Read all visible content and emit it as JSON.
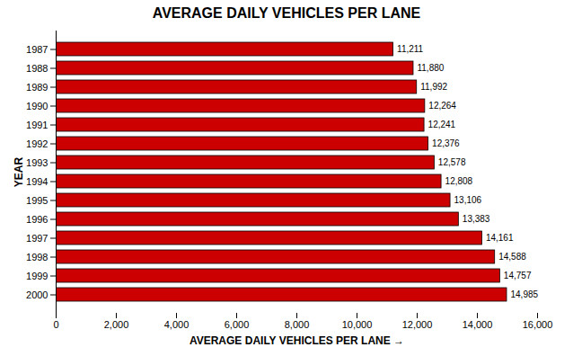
{
  "chart_data": {
    "type": "bar",
    "orientation": "horizontal",
    "title": "AVERAGE DAILY VEHICLES PER LANE",
    "xlabel": "AVERAGE DAILY VEHICLES PER LANE",
    "ylabel": "YEAR",
    "categories": [
      "1987",
      "1988",
      "1989",
      "1990",
      "1991",
      "1992",
      "1993",
      "1994",
      "1995",
      "1996",
      "1997",
      "1998",
      "1999",
      "2000"
    ],
    "values": [
      11211,
      11880,
      11992,
      12264,
      12241,
      12376,
      12578,
      12808,
      13106,
      13383,
      14161,
      14588,
      14757,
      14985
    ],
    "value_labels": [
      "11,211",
      "11,880",
      "11,992",
      "12,264",
      "12,241",
      "12,376",
      "12,578",
      "12,808",
      "13,106",
      "13,383",
      "14,161",
      "14,588",
      "14,757",
      "14,985"
    ],
    "data_labels": true,
    "color": "#cc0000",
    "xlim": [
      0,
      16000
    ],
    "xticks": [
      0,
      {
        "value": 2000,
        "label": "2,000"
      },
      {
        "value": 4000,
        "label": "4,000"
      },
      {
        "value": 6000,
        "label": "6,000"
      },
      {
        "value": 8000,
        "label": "8,000"
      },
      {
        "value": 10000,
        "label": "10,000"
      },
      {
        "value": 12000,
        "label": "12,000"
      },
      {
        "value": 14000,
        "label": "14,000"
      },
      {
        "value": 16000,
        "label": "16,000"
      }
    ],
    "grid": false
  }
}
